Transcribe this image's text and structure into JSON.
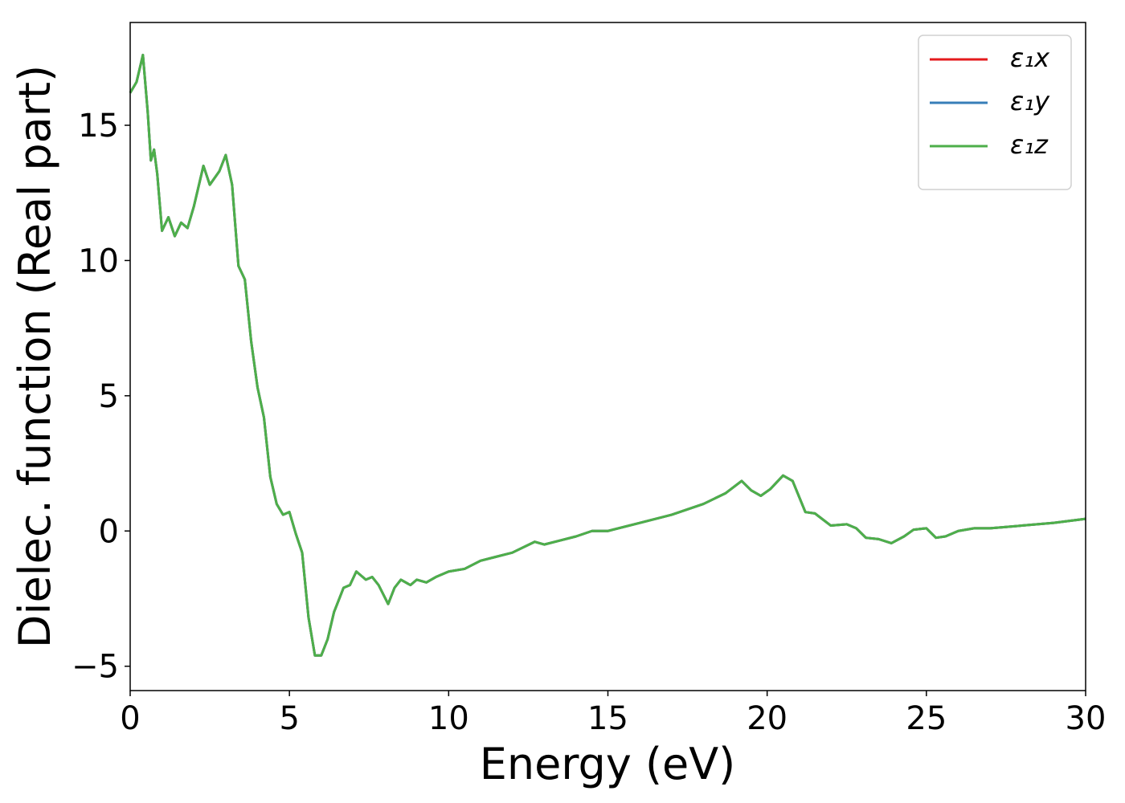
{
  "chart_data": {
    "type": "line",
    "xlabel": "Energy (eV)",
    "ylabel": "Dielec. function (Real part)",
    "x": [
      0,
      0.2,
      0.4,
      0.55,
      0.65,
      0.75,
      0.85,
      1.0,
      1.2,
      1.4,
      1.6,
      1.8,
      2.0,
      2.3,
      2.5,
      2.8,
      3.0,
      3.2,
      3.4,
      3.6,
      3.8,
      4.0,
      4.2,
      4.4,
      4.6,
      4.8,
      5.0,
      5.2,
      5.4,
      5.6,
      5.8,
      6.0,
      6.2,
      6.4,
      6.7,
      6.9,
      7.1,
      7.4,
      7.6,
      7.8,
      8.1,
      8.3,
      8.5,
      8.8,
      9.0,
      9.3,
      9.6,
      10.0,
      10.5,
      11.0,
      11.5,
      12.0,
      12.7,
      13.0,
      13.5,
      14.0,
      14.5,
      15.0,
      16.0,
      17.0,
      18.0,
      18.7,
      19.2,
      19.5,
      19.8,
      20.1,
      20.5,
      20.8,
      21.2,
      21.5,
      22.0,
      22.5,
      22.8,
      23.1,
      23.5,
      23.9,
      24.3,
      24.6,
      25.0,
      25.3,
      25.6,
      26.0,
      26.5,
      27.0,
      27.5,
      28.0,
      29.0,
      30.0
    ],
    "series": [
      {
        "name": "ε₁x",
        "color": "#e41a1c",
        "values": [
          16.2,
          16.6,
          17.6,
          15.5,
          13.7,
          14.1,
          13.2,
          11.1,
          11.6,
          10.9,
          11.4,
          11.2,
          12.0,
          13.5,
          12.8,
          13.3,
          13.9,
          12.8,
          9.8,
          9.3,
          7.0,
          5.3,
          4.2,
          2.0,
          1.0,
          0.6,
          0.7,
          -0.1,
          -0.8,
          -3.2,
          -4.6,
          -4.6,
          -4.0,
          -3.0,
          -2.1,
          -2.0,
          -1.5,
          -1.8,
          -1.7,
          -2.0,
          -2.7,
          -2.1,
          -1.8,
          -2.0,
          -1.8,
          -1.9,
          -1.7,
          -1.5,
          -1.4,
          -1.1,
          -0.95,
          -0.8,
          -0.4,
          -0.5,
          -0.35,
          -0.2,
          0,
          0,
          0.3,
          0.6,
          1.0,
          1.4,
          1.85,
          1.5,
          1.3,
          1.55,
          2.05,
          1.85,
          0.7,
          0.65,
          0.2,
          0.25,
          0.1,
          -0.25,
          -0.3,
          -0.45,
          -0.2,
          0.05,
          0.1,
          -0.25,
          -0.2,
          0.0,
          0.1,
          0.1,
          0.15,
          0.2,
          0.3,
          0.45
        ]
      },
      {
        "name": "ε₁y",
        "color": "#377eb8",
        "values": [
          16.2,
          16.6,
          17.6,
          15.5,
          13.7,
          14.1,
          13.2,
          11.1,
          11.6,
          10.9,
          11.4,
          11.2,
          12.0,
          13.5,
          12.8,
          13.3,
          13.9,
          12.8,
          9.8,
          9.3,
          7.0,
          5.3,
          4.2,
          2.0,
          1.0,
          0.6,
          0.7,
          -0.1,
          -0.8,
          -3.2,
          -4.6,
          -4.6,
          -4.0,
          -3.0,
          -2.1,
          -2.0,
          -1.5,
          -1.8,
          -1.7,
          -2.0,
          -2.7,
          -2.1,
          -1.8,
          -2.0,
          -1.8,
          -1.9,
          -1.7,
          -1.5,
          -1.4,
          -1.1,
          -0.95,
          -0.8,
          -0.4,
          -0.5,
          -0.35,
          -0.2,
          0,
          0,
          0.3,
          0.6,
          1.0,
          1.4,
          1.85,
          1.5,
          1.3,
          1.55,
          2.05,
          1.85,
          0.7,
          0.65,
          0.2,
          0.25,
          0.1,
          -0.25,
          -0.3,
          -0.45,
          -0.2,
          0.05,
          0.1,
          -0.25,
          -0.2,
          0.0,
          0.1,
          0.1,
          0.15,
          0.2,
          0.3,
          0.45
        ]
      },
      {
        "name": "ε₁z",
        "color": "#4daf4a",
        "values": [
          16.2,
          16.6,
          17.6,
          15.5,
          13.7,
          14.1,
          13.2,
          11.1,
          11.6,
          10.9,
          11.4,
          11.2,
          12.0,
          13.5,
          12.8,
          13.3,
          13.9,
          12.8,
          9.8,
          9.3,
          7.0,
          5.3,
          4.2,
          2.0,
          1.0,
          0.6,
          0.7,
          -0.1,
          -0.8,
          -3.2,
          -4.6,
          -4.6,
          -4.0,
          -3.0,
          -2.1,
          -2.0,
          -1.5,
          -1.8,
          -1.7,
          -2.0,
          -2.7,
          -2.1,
          -1.8,
          -2.0,
          -1.8,
          -1.9,
          -1.7,
          -1.5,
          -1.4,
          -1.1,
          -0.95,
          -0.8,
          -0.4,
          -0.5,
          -0.35,
          -0.2,
          0,
          0,
          0.3,
          0.6,
          1.0,
          1.4,
          1.85,
          1.5,
          1.3,
          1.55,
          2.05,
          1.85,
          0.7,
          0.65,
          0.2,
          0.25,
          0.1,
          -0.25,
          -0.3,
          -0.45,
          -0.2,
          0.05,
          0.1,
          -0.25,
          -0.2,
          0.0,
          0.1,
          0.1,
          0.15,
          0.2,
          0.3,
          0.45
        ]
      }
    ],
    "xlim": [
      0,
      30
    ],
    "xticks": [
      0,
      5,
      10,
      15,
      20,
      25,
      30
    ],
    "ylim": [
      -5.9,
      18.8
    ],
    "yticks": [
      {
        "value": -5,
        "label": "−5"
      },
      0,
      5,
      10,
      15
    ],
    "grid": false,
    "legend": "upper right"
  }
}
